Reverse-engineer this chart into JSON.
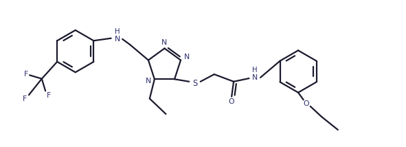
{
  "bg_color": "#ffffff",
  "line_color": "#1a1a2e",
  "line_width": 1.6,
  "figsize": [
    5.91,
    2.14
  ],
  "dpi": 100,
  "xlim": [
    0,
    10
  ],
  "ylim": [
    0,
    3.6
  ],
  "label_color": "#2c2c6e",
  "label_fs": 7.8
}
